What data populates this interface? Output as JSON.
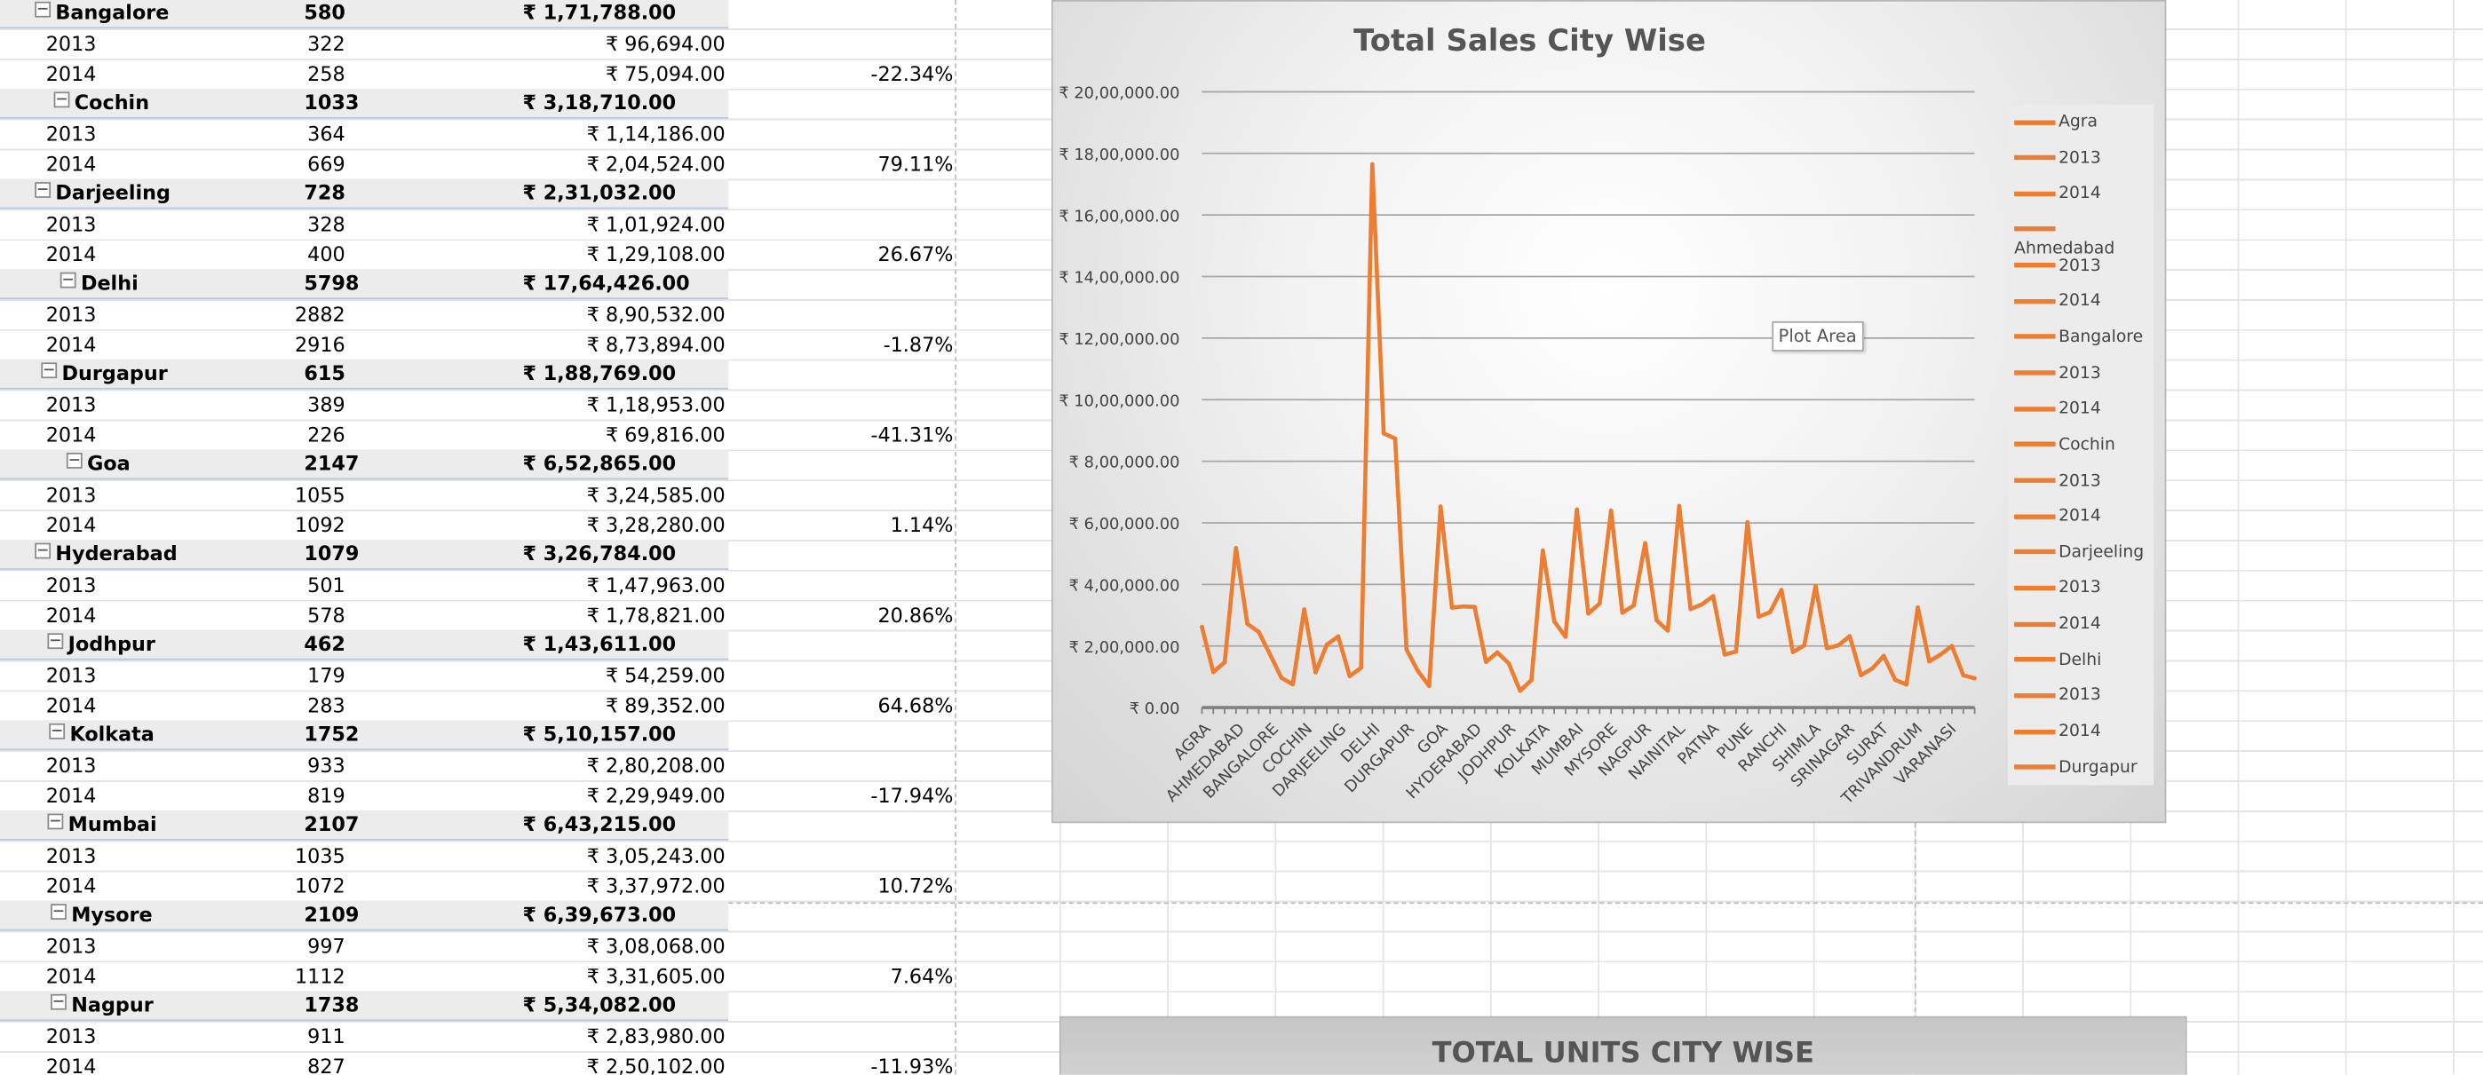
{
  "pivot": {
    "rows": [
      {
        "type": "city",
        "name": "Bangalore",
        "units": "580",
        "amount": "₹ 1,71,788.00",
        "indent": 22
      },
      {
        "type": "year",
        "year": "2013",
        "units": "322",
        "amount": "₹ 96,694.00",
        "pct": ""
      },
      {
        "type": "year",
        "year": "2014",
        "units": "258",
        "amount": "₹ 75,094.00",
        "pct": "-22.34%"
      },
      {
        "type": "city",
        "name": "Cochin",
        "units": "1033",
        "amount": "₹ 3,18,710.00",
        "indent": 34
      },
      {
        "type": "year",
        "year": "2013",
        "units": "364",
        "amount": "₹ 1,14,186.00",
        "pct": ""
      },
      {
        "type": "year",
        "year": "2014",
        "units": "669",
        "amount": "₹ 2,04,524.00",
        "pct": "79.11%"
      },
      {
        "type": "city",
        "name": "Darjeeling",
        "units": "728",
        "amount": "₹ 2,31,032.00",
        "indent": 22
      },
      {
        "type": "year",
        "year": "2013",
        "units": "328",
        "amount": "₹ 1,01,924.00",
        "pct": ""
      },
      {
        "type": "year",
        "year": "2014",
        "units": "400",
        "amount": "₹ 1,29,108.00",
        "pct": "26.67%"
      },
      {
        "type": "city",
        "name": "Delhi",
        "units": "5798",
        "amount": "₹ 17,64,426.00",
        "indent": 38
      },
      {
        "type": "year",
        "year": "2013",
        "units": "2882",
        "amount": "₹ 8,90,532.00",
        "pct": ""
      },
      {
        "type": "year",
        "year": "2014",
        "units": "2916",
        "amount": "₹ 8,73,894.00",
        "pct": "-1.87%"
      },
      {
        "type": "city",
        "name": "Durgapur",
        "units": "615",
        "amount": "₹ 1,88,769.00",
        "indent": 26
      },
      {
        "type": "year",
        "year": "2013",
        "units": "389",
        "amount": "₹ 1,18,953.00",
        "pct": ""
      },
      {
        "type": "year",
        "year": "2014",
        "units": "226",
        "amount": "₹ 69,816.00",
        "pct": "-41.31%"
      },
      {
        "type": "city",
        "name": "Goa",
        "units": "2147",
        "amount": "₹ 6,52,865.00",
        "indent": 42
      },
      {
        "type": "year",
        "year": "2013",
        "units": "1055",
        "amount": "₹ 3,24,585.00",
        "pct": ""
      },
      {
        "type": "year",
        "year": "2014",
        "units": "1092",
        "amount": "₹ 3,28,280.00",
        "pct": "1.14%"
      },
      {
        "type": "city",
        "name": "Hyderabad",
        "units": "1079",
        "amount": "₹ 3,26,784.00",
        "indent": 22
      },
      {
        "type": "year",
        "year": "2013",
        "units": "501",
        "amount": "₹ 1,47,963.00",
        "pct": ""
      },
      {
        "type": "year",
        "year": "2014",
        "units": "578",
        "amount": "₹ 1,78,821.00",
        "pct": "20.86%"
      },
      {
        "type": "city",
        "name": "Jodhpur",
        "units": "462",
        "amount": "₹ 1,43,611.00",
        "indent": 30
      },
      {
        "type": "year",
        "year": "2013",
        "units": "179",
        "amount": "₹ 54,259.00",
        "pct": ""
      },
      {
        "type": "year",
        "year": "2014",
        "units": "283",
        "amount": "₹ 89,352.00",
        "pct": "64.68%"
      },
      {
        "type": "city",
        "name": "Kolkata",
        "units": "1752",
        "amount": "₹ 5,10,157.00",
        "indent": 31
      },
      {
        "type": "year",
        "year": "2013",
        "units": "933",
        "amount": "₹ 2,80,208.00",
        "pct": ""
      },
      {
        "type": "year",
        "year": "2014",
        "units": "819",
        "amount": "₹ 2,29,949.00",
        "pct": "-17.94%"
      },
      {
        "type": "city",
        "name": "Mumbai",
        "units": "2107",
        "amount": "₹ 6,43,215.00",
        "indent": 30
      },
      {
        "type": "year",
        "year": "2013",
        "units": "1035",
        "amount": "₹ 3,05,243.00",
        "pct": ""
      },
      {
        "type": "year",
        "year": "2014",
        "units": "1072",
        "amount": "₹ 3,37,972.00",
        "pct": "10.72%"
      },
      {
        "type": "city",
        "name": "Mysore",
        "units": "2109",
        "amount": "₹ 6,39,673.00",
        "indent": 32
      },
      {
        "type": "year",
        "year": "2013",
        "units": "997",
        "amount": "₹ 3,08,068.00",
        "pct": ""
      },
      {
        "type": "year",
        "year": "2014",
        "units": "1112",
        "amount": "₹ 3,31,605.00",
        "pct": "7.64%"
      },
      {
        "type": "city",
        "name": "Nagpur",
        "units": "1738",
        "amount": "₹ 5,34,082.00",
        "indent": 32
      },
      {
        "type": "year",
        "year": "2013",
        "units": "911",
        "amount": "₹ 2,83,980.00",
        "pct": ""
      },
      {
        "type": "year",
        "year": "2014",
        "units": "827",
        "amount": "₹ 2,50,102.00",
        "pct": "-11.93%"
      }
    ]
  },
  "chart": {
    "title": "Total Sales City Wise",
    "plot_area_tooltip": "Plot Area",
    "line_color": "#ed7d31",
    "legend": [
      "Agra",
      "2013",
      "2014",
      "Ahmedabad",
      "2013",
      "2014",
      "Bangalore",
      "2013",
      "2014",
      "Cochin",
      "2013",
      "2014",
      "Darjeeling",
      "2013",
      "2014",
      "Delhi",
      "2013",
      "2014",
      "Durgapur"
    ]
  },
  "chart_data": {
    "type": "line",
    "title": "Total Sales City Wise",
    "ylim": [
      0,
      2000000
    ],
    "y_ticks": [
      "₹ 0.00",
      "₹ 2,00,000.00",
      "₹ 4,00,000.00",
      "₹ 6,00,000.00",
      "₹ 8,00,000.00",
      "₹ 10,00,000.00",
      "₹ 12,00,000.00",
      "₹ 14,00,000.00",
      "₹ 16,00,000.00",
      "₹ 18,00,000.00",
      "₹ 20,00,000.00"
    ],
    "x_labels": [
      "AGRA",
      "AHMEDABAD",
      "BANGALORE",
      "COCHIN",
      "DARJEELING",
      "DELHI",
      "DURGAPUR",
      "GOA",
      "HYDERABAD",
      "JODHPUR",
      "KOLKATA",
      "MUMBAI",
      "MYSORE",
      "NAGPUR",
      "NAINITAL",
      "PATNA",
      "PUNE",
      "RANCHI",
      "SHIMLA",
      "SRINAGAR",
      "SURAT",
      "TRIVANDRUM",
      "VARANASI"
    ],
    "grid": true,
    "legend_position": "right",
    "values": [
      262000,
      115000,
      147000,
      518000,
      272000,
      246000,
      171788,
      96694,
      75094,
      318710,
      114186,
      204524,
      231032,
      101924,
      129108,
      1764426,
      890532,
      873894,
      188769,
      118953,
      69816,
      652865,
      324585,
      328280,
      326784,
      147963,
      178821,
      143611,
      54259,
      89352,
      510157,
      280208,
      229949,
      643215,
      305243,
      337972,
      639673,
      308068,
      331605,
      534082,
      283980,
      250102,
      655000,
      320000,
      335000,
      362000,
      172000,
      182000,
      602000,
      295000,
      310000,
      382000,
      180000,
      202000,
      395000,
      193000,
      202000,
      232000,
      105000,
      127000,
      168000,
      90000,
      75000,
      325000,
      150000,
      172000,
      200000,
      105000,
      95000
    ]
  },
  "units_chart": {
    "title": "TOTAL UNITS CITY WISE"
  }
}
